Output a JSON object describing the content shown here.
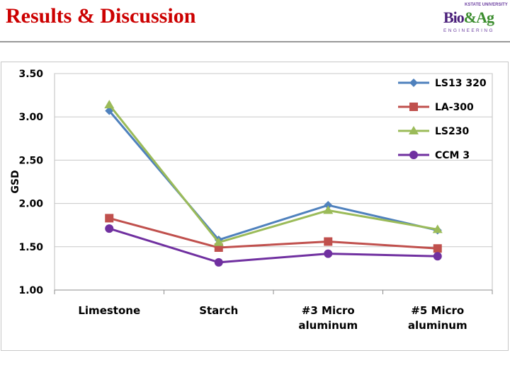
{
  "slide": {
    "title": "Results & Discussion",
    "logo": {
      "top_text": "KSTATE UNIVERSITY",
      "main_text": "Bio&Ag",
      "sub_text": "ENGINEERING"
    }
  },
  "chart_data": {
    "type": "line",
    "title": "",
    "xlabel": "",
    "ylabel": "GSD",
    "ylim": [
      1.0,
      3.5
    ],
    "yticks": [
      "1.00",
      "1.50",
      "2.00",
      "2.50",
      "3.00",
      "3.50"
    ],
    "categories": [
      "Limestone",
      "Starch",
      "#3 Micro aluminum",
      "#5 Micro aluminum"
    ],
    "category_lines": [
      [
        "Limestone"
      ],
      [
        "Starch"
      ],
      [
        "#3 Micro",
        "aluminum"
      ],
      [
        "#5 Micro",
        "aluminum"
      ]
    ],
    "grid": true,
    "legend_position": "top-right",
    "series": [
      {
        "name": "LS13 320",
        "color": "#4f81bd",
        "marker": "diamond",
        "values": [
          3.07,
          1.58,
          1.98,
          1.69
        ]
      },
      {
        "name": "LA-300",
        "color": "#c0504d",
        "marker": "square",
        "values": [
          1.83,
          1.49,
          1.56,
          1.48
        ]
      },
      {
        "name": "LS230",
        "color": "#9bbb59",
        "marker": "triangle",
        "values": [
          3.14,
          1.55,
          1.92,
          1.7
        ]
      },
      {
        "name": "CCM 3",
        "color": "#7030a0",
        "marker": "circle",
        "values": [
          1.71,
          1.32,
          1.42,
          1.39
        ]
      }
    ]
  }
}
